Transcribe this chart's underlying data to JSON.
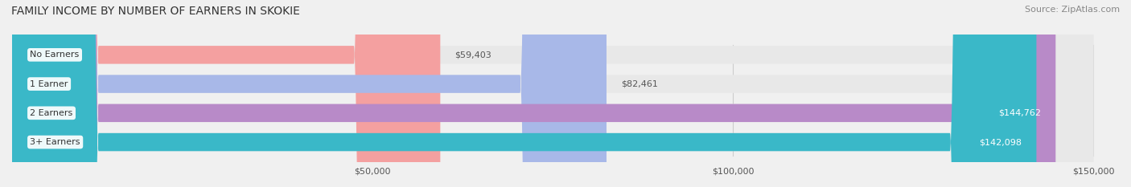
{
  "title": "FAMILY INCOME BY NUMBER OF EARNERS IN SKOKIE",
  "source": "Source: ZipAtlas.com",
  "categories": [
    "No Earners",
    "1 Earner",
    "2 Earners",
    "3+ Earners"
  ],
  "values": [
    59403,
    82461,
    144762,
    142098
  ],
  "bar_colors": [
    "#f4a0a0",
    "#a8b8e8",
    "#b88ac8",
    "#3ab8c8"
  ],
  "label_colors": [
    "#555555",
    "#555555",
    "#ffffff",
    "#ffffff"
  ],
  "x_min": 0,
  "x_max": 150000,
  "x_ticks": [
    50000,
    100000,
    150000
  ],
  "x_tick_labels": [
    "$50,000",
    "$100,000",
    "$150,000"
  ],
  "bg_color": "#f0f0f0",
  "bar_bg_color": "#e8e8e8",
  "figsize": [
    14.06,
    2.33
  ],
  "dpi": 100
}
